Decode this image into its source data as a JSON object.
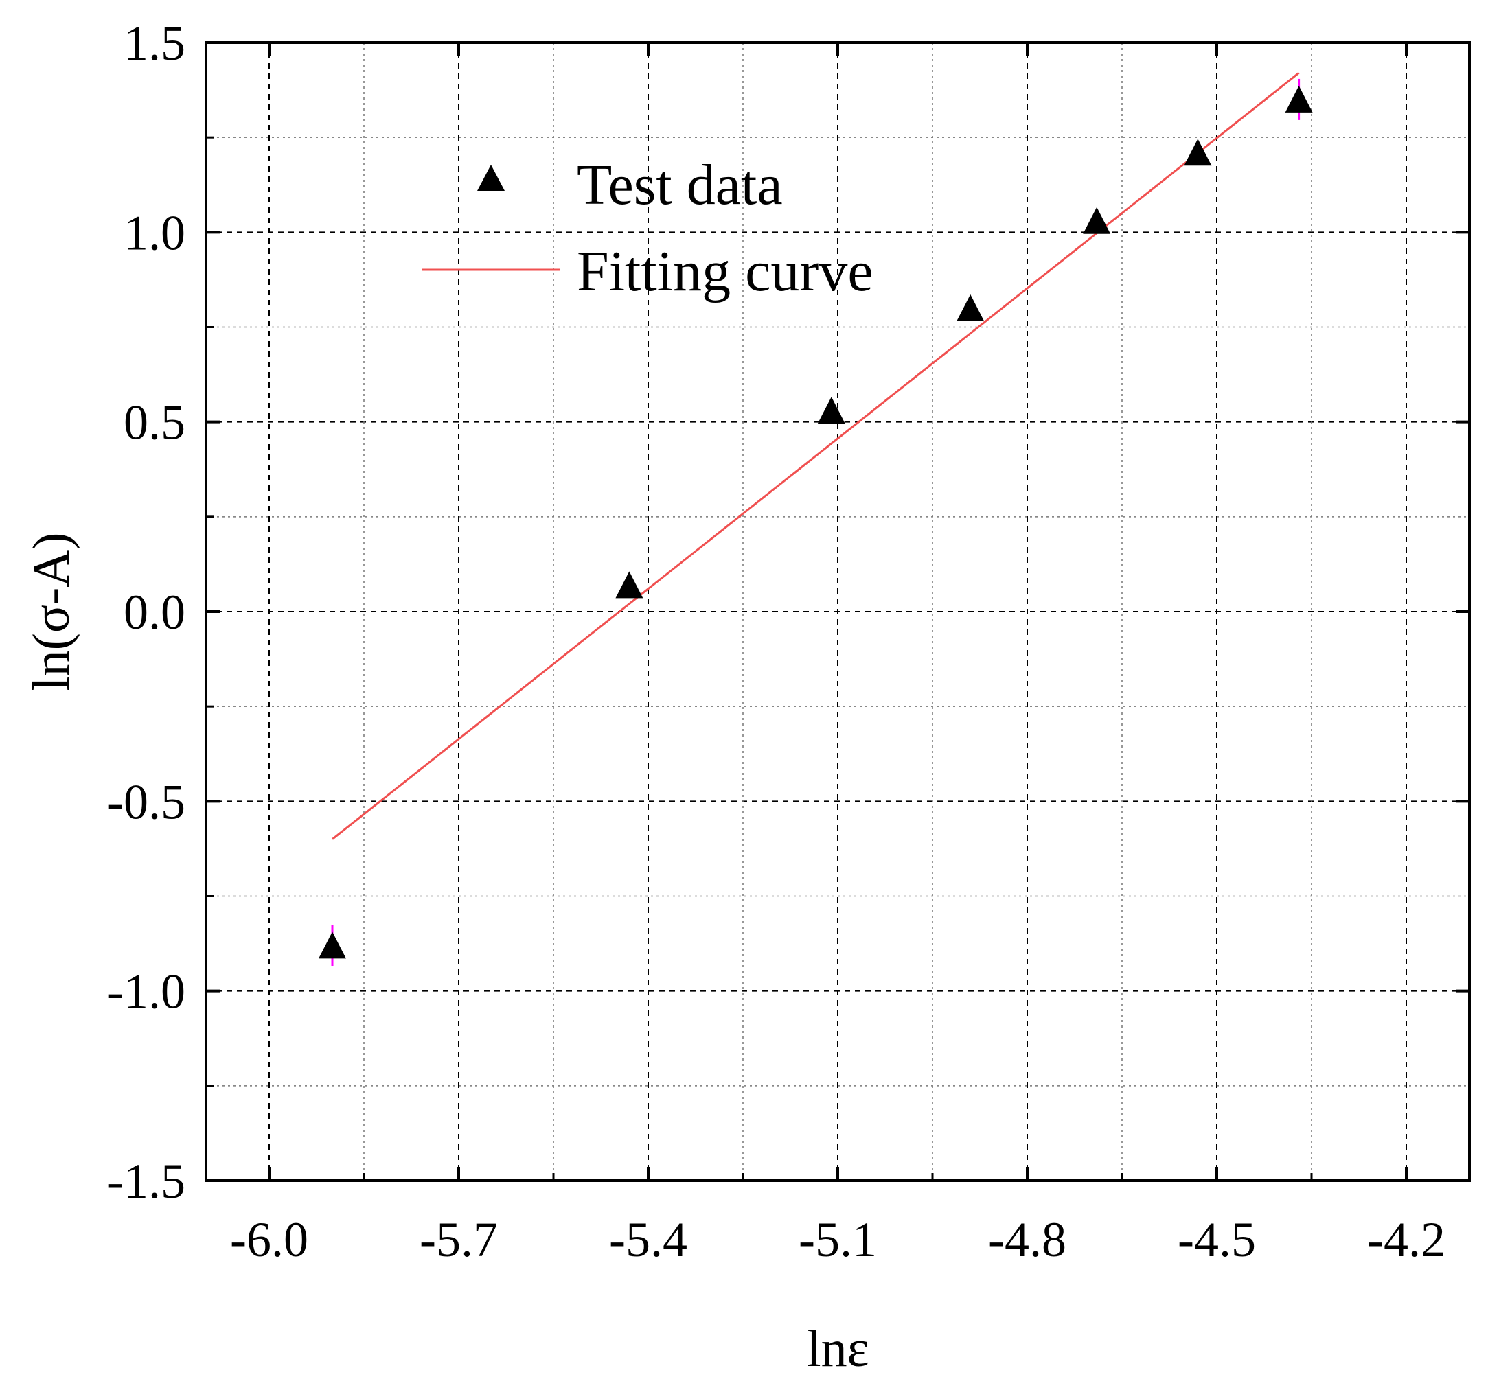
{
  "chart_data": {
    "type": "scatter",
    "title": "",
    "xlabel": "lnε",
    "ylabel": "ln(σ-A)",
    "xlim": [
      -6.1,
      -4.1
    ],
    "ylim": [
      -1.5,
      1.5
    ],
    "grid": true,
    "x_ticks": [
      -6.0,
      -5.7,
      -5.4,
      -5.1,
      -4.8,
      -4.5,
      -4.2
    ],
    "x_tick_labels": [
      "-6.0",
      "-5.7",
      "-5.4",
      "-5.1",
      "-4.8",
      "-4.5",
      "-4.2"
    ],
    "y_ticks": [
      -1.5,
      -1.0,
      -0.5,
      0.0,
      0.5,
      1.0,
      1.5
    ],
    "y_tick_labels": [
      "-1.5",
      "-1.0",
      "-0.5",
      "0.0",
      "0.5",
      "1.0",
      "1.5"
    ],
    "legend": {
      "position": "top-left",
      "entries": [
        {
          "label": "Test data",
          "marker": "triangle"
        },
        {
          "label": "Fitting curve",
          "marker": "line"
        }
      ]
    },
    "series": [
      {
        "name": "Test data",
        "kind": "points",
        "color": "#000000",
        "x": [
          -5.9,
          -5.43,
          -5.11,
          -4.89,
          -4.69,
          -4.53,
          -4.37
        ],
        "y": [
          -0.88,
          0.07,
          0.53,
          0.8,
          1.03,
          1.21,
          1.35
        ]
      },
      {
        "name": "Fitting curve",
        "kind": "line",
        "color": "#f05050",
        "x": [
          -5.9,
          -4.37
        ],
        "y": [
          -0.6,
          1.42
        ]
      }
    ],
    "error_highlight_color": "#ff00ff"
  }
}
